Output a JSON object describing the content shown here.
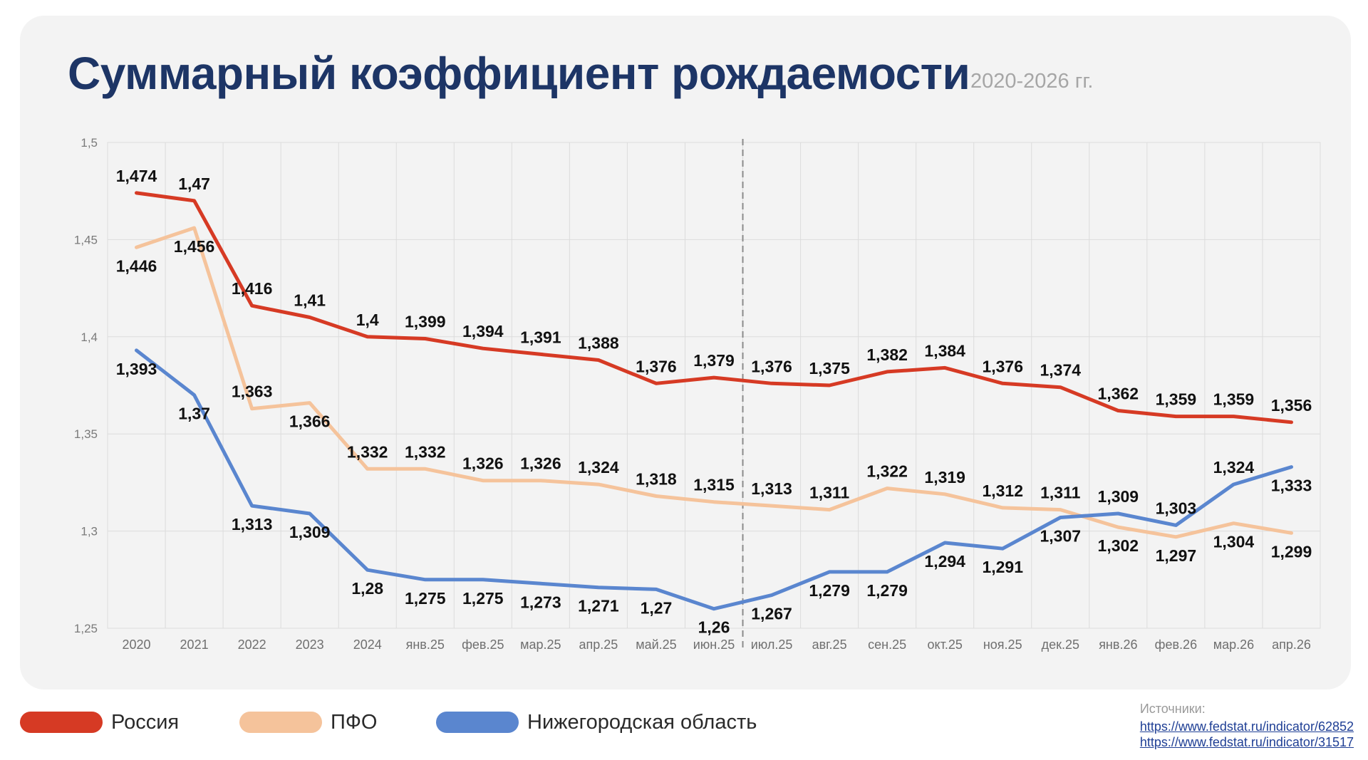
{
  "title": "Суммарный коэффициент рождаемости",
  "subtitle": "2020-2026 гг.",
  "sources": {
    "title": "Источники:",
    "links": [
      "https://www.fedstat.ru/indicator/62852",
      "https://www.fedstat.ru/indicator/31517"
    ]
  },
  "legend": [
    {
      "label": "Россия",
      "color": "#d63a24"
    },
    {
      "label": "ПФО",
      "color": "#f5c39b"
    },
    {
      "label": "Нижегородская область",
      "color": "#5a86cf"
    }
  ],
  "chart_data": {
    "type": "line",
    "categories": [
      "2020",
      "2021",
      "2022",
      "2023",
      "2024",
      "янв.25",
      "фев.25",
      "мар.25",
      "апр.25",
      "май.25",
      "июн.25",
      "июл.25",
      "авг.25",
      "сен.25",
      "окт.25",
      "ноя.25",
      "дек.25",
      "янв.26",
      "фев.26",
      "мар.26",
      "апр.26"
    ],
    "ylim": [
      1.25,
      1.5
    ],
    "yticks": [
      "1,25",
      "1,3",
      "1,35",
      "1,4",
      "1,45",
      "1,5"
    ],
    "grid": true,
    "divider_after": "июн.25",
    "series": [
      {
        "name": "Россия",
        "color": "#d63a24",
        "values": [
          1.474,
          1.47,
          1.416,
          1.41,
          1.4,
          1.399,
          1.394,
          1.391,
          1.388,
          1.376,
          1.379,
          1.376,
          1.375,
          1.382,
          1.384,
          1.376,
          1.374,
          1.362,
          1.359,
          1.359,
          1.356
        ],
        "labels": [
          "1,474",
          "1,47",
          "1,416",
          "1,41",
          "1,4",
          "1,399",
          "1,394",
          "1,391",
          "1,388",
          "1,376",
          "1,379",
          "1,376",
          "1,375",
          "1,382",
          "1,384",
          "1,376",
          "1,374",
          "1,362",
          "1,359",
          "1,359",
          "1,356"
        ]
      },
      {
        "name": "ПФО",
        "color": "#f5c39b",
        "values": [
          1.446,
          1.456,
          1.363,
          1.366,
          1.332,
          1.332,
          1.326,
          1.326,
          1.324,
          1.318,
          1.315,
          1.313,
          1.311,
          1.322,
          1.319,
          1.312,
          1.311,
          1.302,
          1.297,
          1.304,
          1.299
        ],
        "labels": [
          "1,446",
          "1,456",
          "1,363",
          "1,366",
          "1,332",
          "1,332",
          "1,326",
          "1,326",
          "1,324",
          "1,318",
          "1,315",
          "1,313",
          "1,311",
          "1,322",
          "1,319",
          "1,312",
          "1,311",
          "1,302",
          "1,297",
          "1,304",
          "1,299"
        ]
      },
      {
        "name": "Нижегородская область",
        "color": "#5a86cf",
        "values": [
          1.393,
          1.37,
          1.313,
          1.309,
          1.28,
          1.275,
          1.275,
          1.273,
          1.271,
          1.27,
          1.26,
          1.267,
          1.279,
          1.279,
          1.294,
          1.291,
          1.307,
          1.309,
          1.303,
          1.324,
          1.333
        ],
        "labels": [
          "1,393",
          "1,37",
          "1,313",
          "1,309",
          "1,28",
          "1,275",
          "1,275",
          "1,273",
          "1,271",
          "1,27",
          "1,26",
          "1,267",
          "1,279",
          "1,279",
          "1,294",
          "1,291",
          "1,307",
          "1,309",
          "1,303",
          "1,324",
          "1,333"
        ]
      }
    ]
  }
}
